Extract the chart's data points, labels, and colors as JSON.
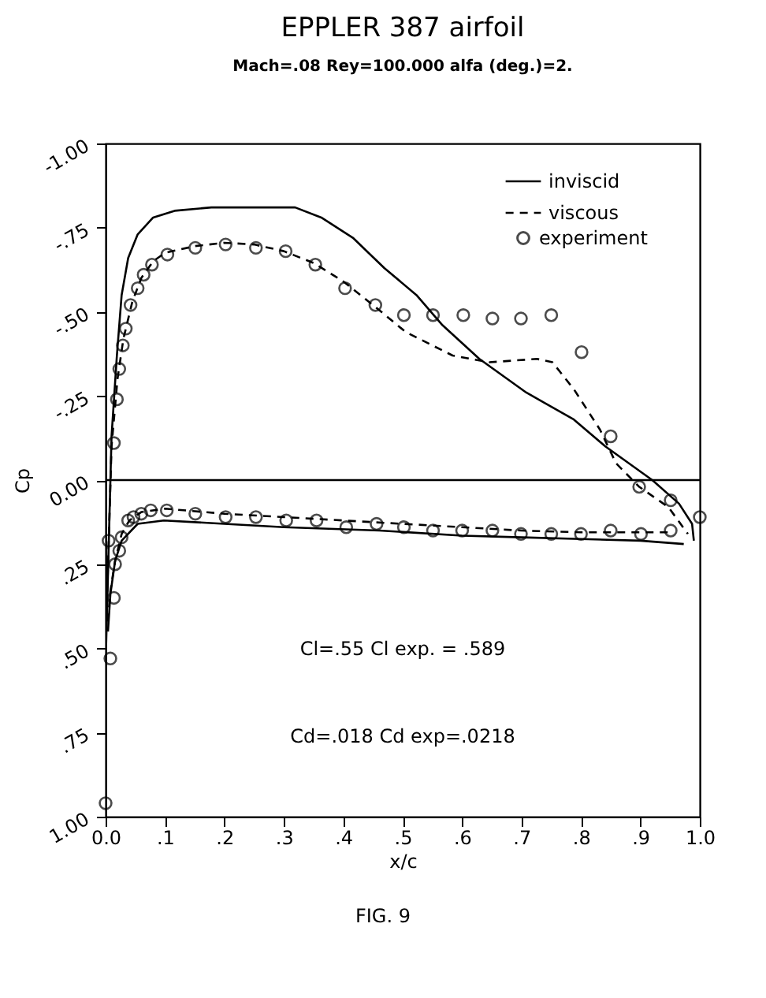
{
  "chart_data": {
    "type": "line",
    "title": "EPPLER 387 airfoil",
    "subtitle": "Mach=.08 Rey=100.000 alfa (deg.)=2.",
    "xlabel": "x/c",
    "ylabel": "Cp",
    "annotations": [
      "Cl=.55 Cl exp. = .589",
      "Cd=.018 Cd exp=.0218",
      "FIG. 9"
    ],
    "xlim": [
      0,
      1
    ],
    "xticks": [
      {
        "value": 0,
        "label": "0.0"
      },
      {
        "value": 0.1,
        "label": ".1"
      },
      {
        "value": 0.2,
        "label": ".2"
      },
      {
        "value": 0.3,
        "label": ".3"
      },
      {
        "value": 0.4,
        "label": ".4"
      },
      {
        "value": 0.5,
        "label": ".5"
      },
      {
        "value": 0.6,
        "label": ".6"
      },
      {
        "value": 0.7,
        "label": ".7"
      },
      {
        "value": 0.8,
        "label": ".8"
      },
      {
        "value": 0.9,
        "label": ".9"
      },
      {
        "value": 1,
        "label": "1.0"
      }
    ],
    "ylim": [
      1,
      -1
    ],
    "yticks": [
      {
        "value": -1,
        "label": "-1.00"
      },
      {
        "value": -0.75,
        "label": "-.75"
      },
      {
        "value": -0.5,
        "label": "-.50"
      },
      {
        "value": -0.25,
        "label": "-.25"
      },
      {
        "value": 0,
        "label": "0.00"
      },
      {
        "value": 0.25,
        "label": ".25"
      },
      {
        "value": 0.5,
        "label": ".50"
      },
      {
        "value": 0.75,
        "label": ".75"
      },
      {
        "value": 1,
        "label": "1.00"
      }
    ],
    "grid": false,
    "legend": "top right",
    "ref_lines": [
      {
        "axis": "y",
        "value": 0,
        "color": "#000000"
      }
    ],
    "series": [
      {
        "name": "inviscid",
        "type": "line",
        "color": "#000000",
        "line_style": "solid",
        "marker": "none",
        "x": [
          0.0,
          0.01,
          0.019,
          0.027,
          0.038,
          0.054,
          0.08,
          0.116,
          0.178,
          0.319,
          0.363,
          0.416,
          0.469,
          0.523,
          0.567,
          0.629,
          0.708,
          0.788,
          0.841,
          0.92,
          0.965,
          0.987,
          0.99
        ],
        "values": [
          0.55,
          -0.13,
          -0.37,
          -0.55,
          -0.66,
          -0.73,
          -0.78,
          -0.8,
          -0.81,
          -0.81,
          -0.78,
          -0.72,
          -0.63,
          -0.55,
          -0.46,
          -0.36,
          -0.26,
          -0.18,
          -0.1,
          0.0,
          0.07,
          0.13,
          0.18
        ]
      },
      {
        "name": "viscous",
        "type": "line",
        "color": "#000000",
        "line_style": "dashed",
        "marker": "none",
        "x": [
          0.0,
          0.01,
          0.02,
          0.03,
          0.045,
          0.06,
          0.08,
          0.1,
          0.15,
          0.2,
          0.25,
          0.3,
          0.35,
          0.4,
          0.45,
          0.505,
          0.584,
          0.646,
          0.726,
          0.752,
          0.788,
          0.832,
          0.859,
          0.898,
          0.947,
          0.98
        ],
        "values": [
          0.5,
          -0.1,
          -0.3,
          -0.42,
          -0.53,
          -0.6,
          -0.65,
          -0.675,
          -0.695,
          -0.705,
          -0.7,
          -0.68,
          -0.645,
          -0.59,
          -0.52,
          -0.44,
          -0.37,
          -0.35,
          -0.36,
          -0.35,
          -0.27,
          -0.15,
          -0.05,
          0.02,
          0.08,
          0.16
        ]
      },
      {
        "name": "experiment",
        "type": "scatter",
        "color": "#000000",
        "marker": "circle",
        "x": [
          0.0,
          0.008,
          0.014,
          0.016,
          0.023,
          0.005,
          0.027,
          0.038,
          0.047,
          0.06,
          0.076,
          0.103,
          0.151,
          0.202,
          0.253,
          0.304,
          0.355,
          0.405,
          0.456,
          0.502,
          0.551,
          0.6,
          0.651,
          0.699,
          0.75,
          0.8,
          0.85,
          0.901,
          0.951,
          0.014,
          0.019,
          0.023,
          0.029,
          0.034,
          0.042,
          0.054,
          0.064,
          0.078,
          0.104,
          0.151,
          0.202,
          0.253,
          0.303,
          0.353,
          0.403,
          0.454,
          0.502,
          0.551,
          0.602,
          0.651,
          0.699,
          0.75,
          0.801,
          0.85,
          0.898,
          0.951,
          1.0
        ],
        "values": [
          0.96,
          0.53,
          0.35,
          0.25,
          0.21,
          0.18,
          0.17,
          0.12,
          0.11,
          0.1,
          0.09,
          0.09,
          0.1,
          0.11,
          0.11,
          0.12,
          0.12,
          0.14,
          0.13,
          0.14,
          0.15,
          0.15,
          0.15,
          0.16,
          0.16,
          0.16,
          0.15,
          0.16,
          0.15,
          -0.11,
          -0.24,
          -0.33,
          -0.4,
          -0.45,
          -0.52,
          -0.57,
          -0.61,
          -0.64,
          -0.67,
          -0.69,
          -0.7,
          -0.69,
          -0.68,
          -0.64,
          -0.57,
          -0.52,
          -0.49,
          -0.49,
          -0.49,
          -0.48,
          -0.48,
          -0.49,
          -0.38,
          -0.13,
          0.02,
          0.06,
          0.11
        ]
      },
      {
        "type": "line",
        "color": "#000000",
        "line_style": "solid",
        "marker": "none",
        "x": [
          0.004,
          0.008,
          0.016,
          0.027,
          0.054,
          0.098,
          0.2,
          0.3,
          0.461,
          0.6,
          0.7,
          0.8,
          0.9,
          0.973
        ],
        "values": [
          0.45,
          0.34,
          0.24,
          0.18,
          0.13,
          0.12,
          0.13,
          0.14,
          0.15,
          0.165,
          0.17,
          0.175,
          0.18,
          0.19
        ]
      },
      {
        "type": "line",
        "color": "#000000",
        "line_style": "dashed",
        "marker": "none",
        "x": [
          0.004,
          0.008,
          0.016,
          0.027,
          0.04,
          0.06,
          0.1,
          0.2,
          0.3,
          0.4,
          0.5,
          0.6,
          0.7,
          0.8,
          0.9,
          0.95
        ],
        "values": [
          0.42,
          0.33,
          0.24,
          0.16,
          0.12,
          0.095,
          0.085,
          0.1,
          0.11,
          0.12,
          0.13,
          0.14,
          0.15,
          0.155,
          0.155,
          0.155
        ]
      }
    ]
  }
}
